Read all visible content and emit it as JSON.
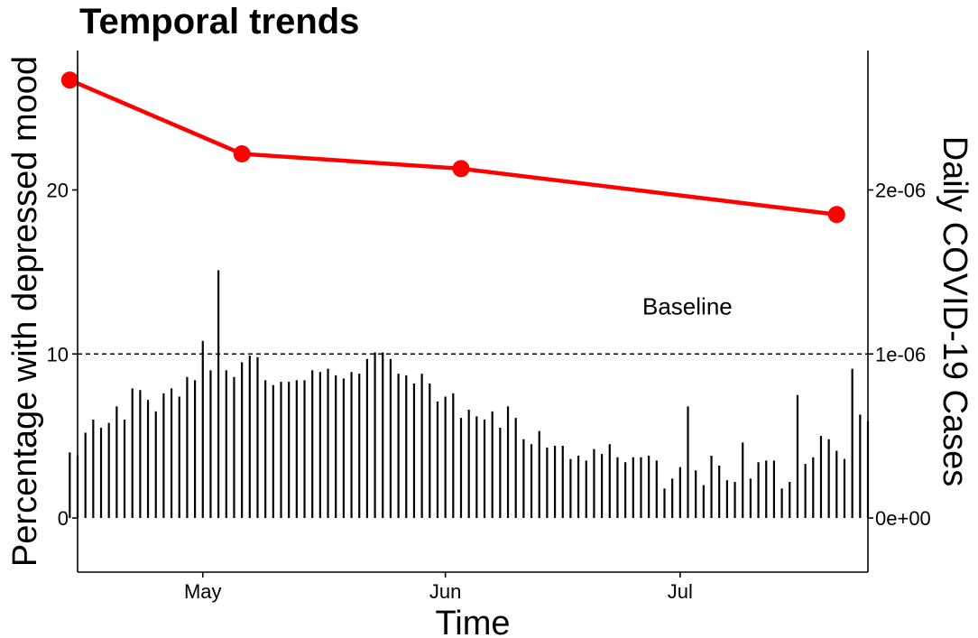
{
  "chart_data": {
    "type": "bar+line",
    "title": "Temporal trends",
    "xlabel": "Time",
    "ylabel_left": "Percentage with depressed mood",
    "ylabel_right": "Daily COVID-19 Cases",
    "x_range": [
      "2020-04-15",
      "2020-07-25"
    ],
    "x_ticks": [
      {
        "date": "2020-05-01",
        "label": "May"
      },
      {
        "date": "2020-06-01",
        "label": "Jun"
      },
      {
        "date": "2020-07-01",
        "label": "Jul"
      }
    ],
    "y_left_range": [
      -3.3,
      28.5
    ],
    "y_left_ticks": [
      0,
      10,
      20
    ],
    "y_right_range": [
      -3.3e-07,
      2.85e-06
    ],
    "y_right_ticks": [
      {
        "value": 0,
        "label": "0e+00"
      },
      {
        "value": 1e-06,
        "label": "1e-06"
      },
      {
        "value": 2e-06,
        "label": "2e-06"
      }
    ],
    "grid": false,
    "reference_line": {
      "axis": "left",
      "value": 10,
      "style": "dashed",
      "label": "Baseline"
    },
    "line_series": {
      "color": "#ff0000",
      "points": [
        {
          "date": "2020-04-14",
          "value": 26.7
        },
        {
          "date": "2020-05-06",
          "value": 22.2
        },
        {
          "date": "2020-06-03",
          "value": 21.3
        },
        {
          "date": "2020-07-21",
          "value": 18.5
        }
      ]
    },
    "bar_series": {
      "color": "#000000",
      "start_date": "2020-04-14",
      "values_right": [
        4e-07,
        3.8e-07,
        5.2e-07,
        6e-07,
        5.5e-07,
        5.8e-07,
        6.8e-07,
        6e-07,
        7.9e-07,
        7.8e-07,
        7.2e-07,
        6.5e-07,
        7.6e-07,
        7.9e-07,
        7.4e-07,
        8.6e-07,
        8.4e-07,
        1.08e-06,
        9e-07,
        1.51e-06,
        9e-07,
        8.6e-07,
        9.5e-07,
        9.9e-07,
        9.8e-07,
        8.4e-07,
        8.1e-07,
        8.3e-07,
        8.3e-07,
        8.4e-07,
        8.4e-07,
        9e-07,
        8.9e-07,
        9.1e-07,
        8.7e-07,
        8.5e-07,
        8.9e-07,
        8.8e-07,
        9.7e-07,
        1.01e-06,
        1.01e-06,
        9.7e-07,
        8.8e-07,
        8.7e-07,
        8.2e-07,
        8.8e-07,
        8.2e-07,
        7.1e-07,
        7.4e-07,
        7.6e-07,
        6.1e-07,
        6.6e-07,
        6.2e-07,
        6e-07,
        6.5e-07,
        5.5e-07,
        6.8e-07,
        6.1e-07,
        4.8e-07,
        4.5e-07,
        5.3e-07,
        4.3e-07,
        4.4e-07,
        4.4e-07,
        3.6e-07,
        3.8e-07,
        3.5e-07,
        4.2e-07,
        3.9e-07,
        4.5e-07,
        3.7e-07,
        3.4e-07,
        3.7e-07,
        3.7e-07,
        3.8e-07,
        3.5e-07,
        1.8e-07,
        2.4e-07,
        3.1e-07,
        6.8e-07,
        2.9e-07,
        2e-07,
        3.8e-07,
        3.2e-07,
        2.3e-07,
        2.2e-07,
        4.6e-07,
        2.4e-07,
        3.4e-07,
        3.5e-07,
        3.5e-07,
        1.8e-07,
        2.2e-07,
        7.5e-07,
        3.3e-07,
        3.7e-07,
        5e-07,
        4.8e-07,
        4.1e-07,
        3.6e-07,
        9.1e-07,
        6.3e-07,
        5.9e-07
      ]
    }
  }
}
